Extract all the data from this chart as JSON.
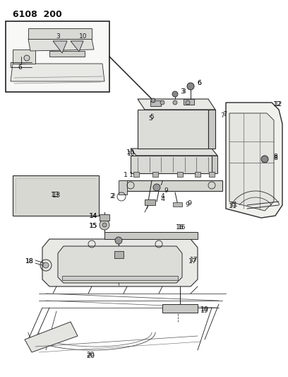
{
  "title": "6108 200",
  "bg": "#f5f5f0",
  "lc": "#2a2a2a",
  "fig_w": 4.08,
  "fig_h": 5.33,
  "dpi": 100
}
